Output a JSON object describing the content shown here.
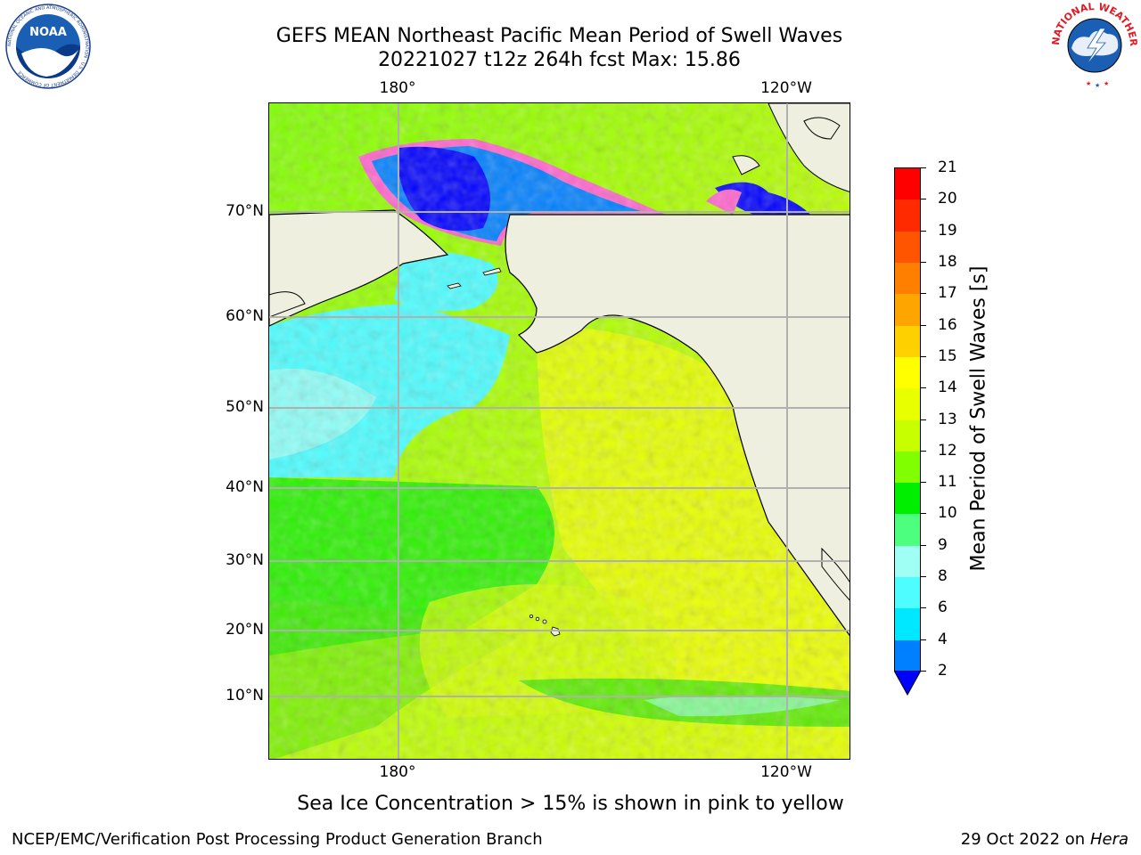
{
  "header": {
    "title_line1": "GEFS MEAN Northeast Pacific Mean Period of Swell Waves",
    "title_line2": "20221027 t12z 264h fcst   Max: 15.86"
  },
  "logos": {
    "left": {
      "name": "NOAA",
      "ring_text": "NATIONAL OCEANIC AND ATMOSPHERIC ADMINISTRATION · U.S. DEPARTMENT OF COMMERCE"
    },
    "right": {
      "ring_text": "NATIONAL WEATHER SERVICE"
    }
  },
  "map": {
    "lon_labels": [
      "180°",
      "120°W"
    ],
    "lat_labels": [
      "70°N",
      "60°N",
      "50°N",
      "40°N",
      "30°N",
      "20°N",
      "10°N"
    ]
  },
  "colorbar": {
    "label": "Mean Period of Swell Waves [s]",
    "ticks": [
      "21",
      "20",
      "19",
      "18",
      "17",
      "16",
      "15",
      "14",
      "13",
      "12",
      "11",
      "10",
      "9",
      "8",
      "6",
      "4",
      "2"
    ],
    "colors": [
      "#ff0000",
      "#ff2a00",
      "#ff5500",
      "#ff7f00",
      "#ffa500",
      "#ffd000",
      "#ffff00",
      "#e8ff00",
      "#c8ff00",
      "#7fff00",
      "#00ee00",
      "#4cff7f",
      "#9ffff5",
      "#4dfdff",
      "#00e8ff",
      "#0080ff",
      "#0000ff"
    ]
  },
  "footer": {
    "sea_ice_note": "Sea Ice Concentration > 15% is shown in pink to yellow",
    "credit_left": "NCEP/EMC/Verification Post Processing Product Generation Branch",
    "credit_right_date": "29 Oct 2022 on ",
    "credit_right_host": "Hera"
  }
}
